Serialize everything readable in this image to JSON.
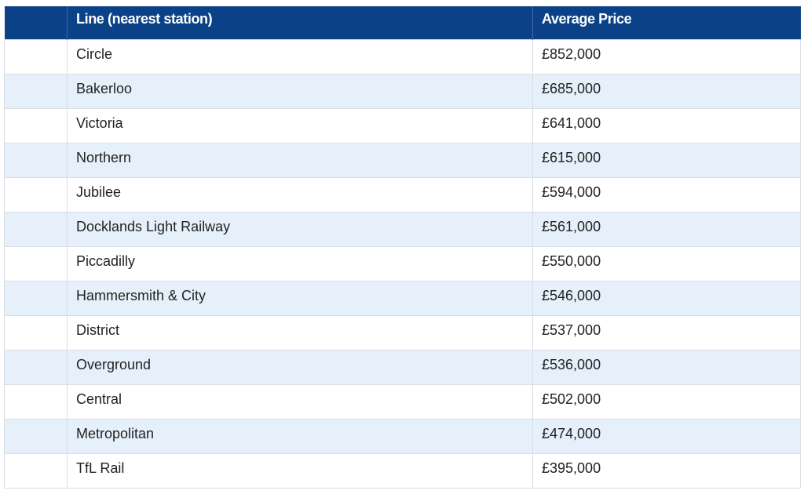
{
  "table": {
    "header": [
      "Line (nearest station)",
      "Average Price"
    ],
    "rows": [
      [
        "Circle",
        "£852,000"
      ],
      [
        "Bakerloo",
        "£685,000"
      ],
      [
        "Victoria",
        "£641,000"
      ],
      [
        "Northern",
        "£615,000"
      ],
      [
        "Jubilee",
        "£594,000"
      ],
      [
        "Docklands Light Railway",
        "£561,000"
      ],
      [
        "Piccadilly",
        "£550,000"
      ],
      [
        "Hammersmith & City",
        "£546,000"
      ],
      [
        "District",
        "£537,000"
      ],
      [
        "Overground",
        "£536,000"
      ],
      [
        "Central",
        "£502,000"
      ],
      [
        "Metropolitan",
        "£474,000"
      ],
      [
        "TfL Rail",
        "£395,000"
      ]
    ]
  }
}
